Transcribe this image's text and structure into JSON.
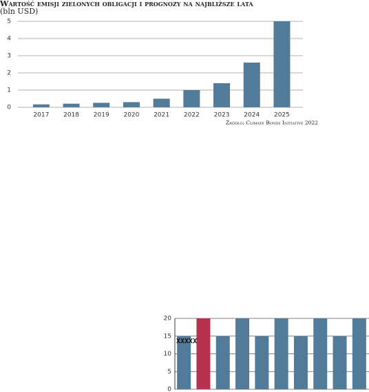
{
  "chart_data": [
    {
      "type": "bar",
      "title": "Wartość emisji zielonych obligacji  i prognozy na najbliższe lata",
      "subtitle": "(bln USD)",
      "source": "Źródło: Climate Bonds Initiative 2022",
      "categories": [
        "2017",
        "2018",
        "2019",
        "2020",
        "2021",
        "2022",
        "2023",
        "2024",
        "2025"
      ],
      "values": [
        0.17,
        0.21,
        0.26,
        0.3,
        0.5,
        1.0,
        1.4,
        2.6,
        5.0
      ],
      "color": "#527a99",
      "ylim": [
        0,
        5
      ],
      "yticks": [
        0,
        1,
        2,
        3,
        4,
        5
      ],
      "grid": true
    },
    {
      "type": "bar",
      "annotation": "XXXXX",
      "categories": [
        null,
        null,
        null,
        null,
        null,
        null,
        null,
        null,
        null,
        null
      ],
      "values": [
        15,
        20,
        15,
        20,
        15,
        20,
        15,
        20,
        15,
        20
      ],
      "colors": [
        "#527a99",
        "#b5334f",
        "#527a99",
        "#527a99",
        "#527a99",
        "#527a99",
        "#527a99",
        "#527a99",
        "#527a99",
        "#527a99"
      ],
      "ylim": [
        0,
        20
      ],
      "yticks": [
        0,
        5,
        10,
        15,
        20
      ],
      "grid": true
    }
  ]
}
